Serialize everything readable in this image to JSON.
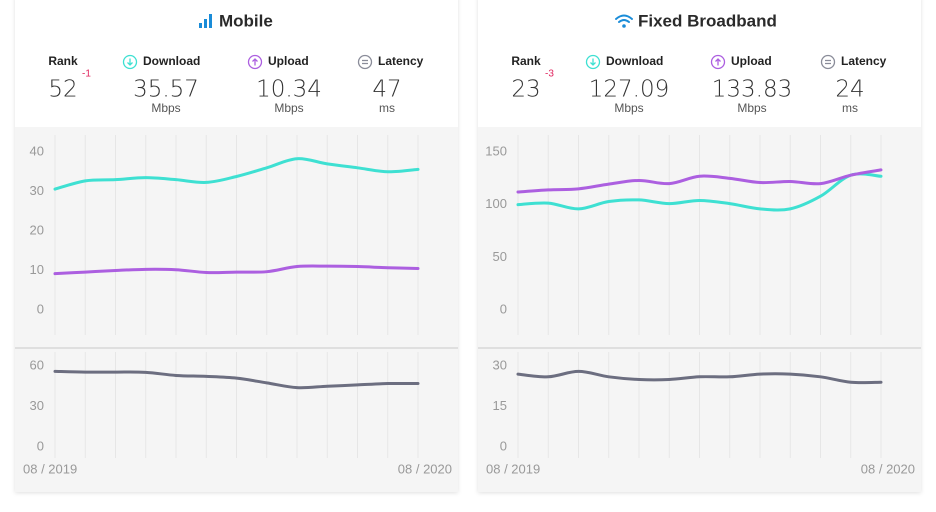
{
  "panels": [
    {
      "title": "Mobile",
      "stats": [
        {
          "label": "Rank",
          "value": "52",
          "change": "-1"
        },
        {
          "label": "Download",
          "value": "35.57",
          "unit": "Mbps"
        },
        {
          "label": "Upload",
          "value": "10.34",
          "unit": "Mbps"
        },
        {
          "label": "Latency",
          "value": "47",
          "unit": "ms"
        }
      ]
    },
    {
      "title": "Fixed Broadband",
      "stats": [
        {
          "label": "Rank",
          "value": "23",
          "change": "-3"
        },
        {
          "label": "Download",
          "value": "127.09",
          "unit": "Mbps"
        },
        {
          "label": "Upload",
          "value": "133.83",
          "unit": "Mbps"
        },
        {
          "label": "Latency",
          "value": "24",
          "unit": "ms"
        }
      ]
    }
  ],
  "chart_data": [
    {
      "type": "line",
      "categories": [
        null,
        null,
        null,
        null,
        null,
        null,
        null,
        null,
        null,
        null,
        null,
        null,
        null
      ],
      "series": [
        {
          "color": "#3ee0d2",
          "values": [
            30.6,
            32.7,
            33,
            33.5,
            33,
            32.3,
            33.8,
            36,
            38.3,
            37,
            36,
            35,
            35.6
          ]
        },
        {
          "color": "#ac5fe0",
          "values": [
            9.2,
            9.6,
            10,
            10.3,
            10.2,
            9.5,
            9.6,
            9.7,
            11,
            11.1,
            11,
            10.7,
            10.5
          ]
        }
      ],
      "ylim": [
        0,
        40
      ],
      "yticks": [
        0,
        10,
        20,
        30,
        40
      ],
      "grid": true
    },
    {
      "type": "line",
      "categories": [
        "08 / 2019",
        null,
        null,
        null,
        null,
        null,
        null,
        null,
        null,
        null,
        null,
        null,
        "08 / 2020"
      ],
      "series": [
        {
          "color": "#6c6e80",
          "values": [
            56,
            55.5,
            55.5,
            55.3,
            53,
            52.3,
            51,
            47.5,
            44,
            45,
            46,
            47,
            47
          ]
        }
      ],
      "ylim": [
        0,
        60
      ],
      "yticks": [
        0,
        30,
        60
      ],
      "grid": true
    },
    {
      "type": "line",
      "categories": [
        null,
        null,
        null,
        null,
        null,
        null,
        null,
        null,
        null,
        null,
        null,
        null,
        null
      ],
      "series": [
        {
          "color": "#3ee0d2",
          "values": [
            100,
            101.5,
            96,
            103,
            104.5,
            101,
            104,
            101,
            96,
            96,
            108,
            128,
            127
          ]
        },
        {
          "color": "#ac5fe0",
          "values": [
            112,
            114,
            115,
            119.5,
            123,
            120,
            127,
            125,
            121,
            122,
            120,
            128,
            133
          ]
        }
      ],
      "ylim": [
        0,
        150
      ],
      "yticks": [
        0,
        50,
        100,
        150
      ],
      "grid": true
    },
    {
      "type": "line",
      "categories": [
        "08 / 2019",
        null,
        null,
        null,
        null,
        null,
        null,
        null,
        null,
        null,
        null,
        null,
        "08 / 2020"
      ],
      "series": [
        {
          "color": "#6c6e80",
          "values": [
            27,
            26,
            28,
            26,
            25,
            25,
            26,
            26,
            27,
            27,
            26,
            24,
            24
          ]
        }
      ],
      "ylim": [
        0,
        30
      ],
      "yticks": [
        0,
        15,
        30
      ],
      "grid": true
    }
  ]
}
